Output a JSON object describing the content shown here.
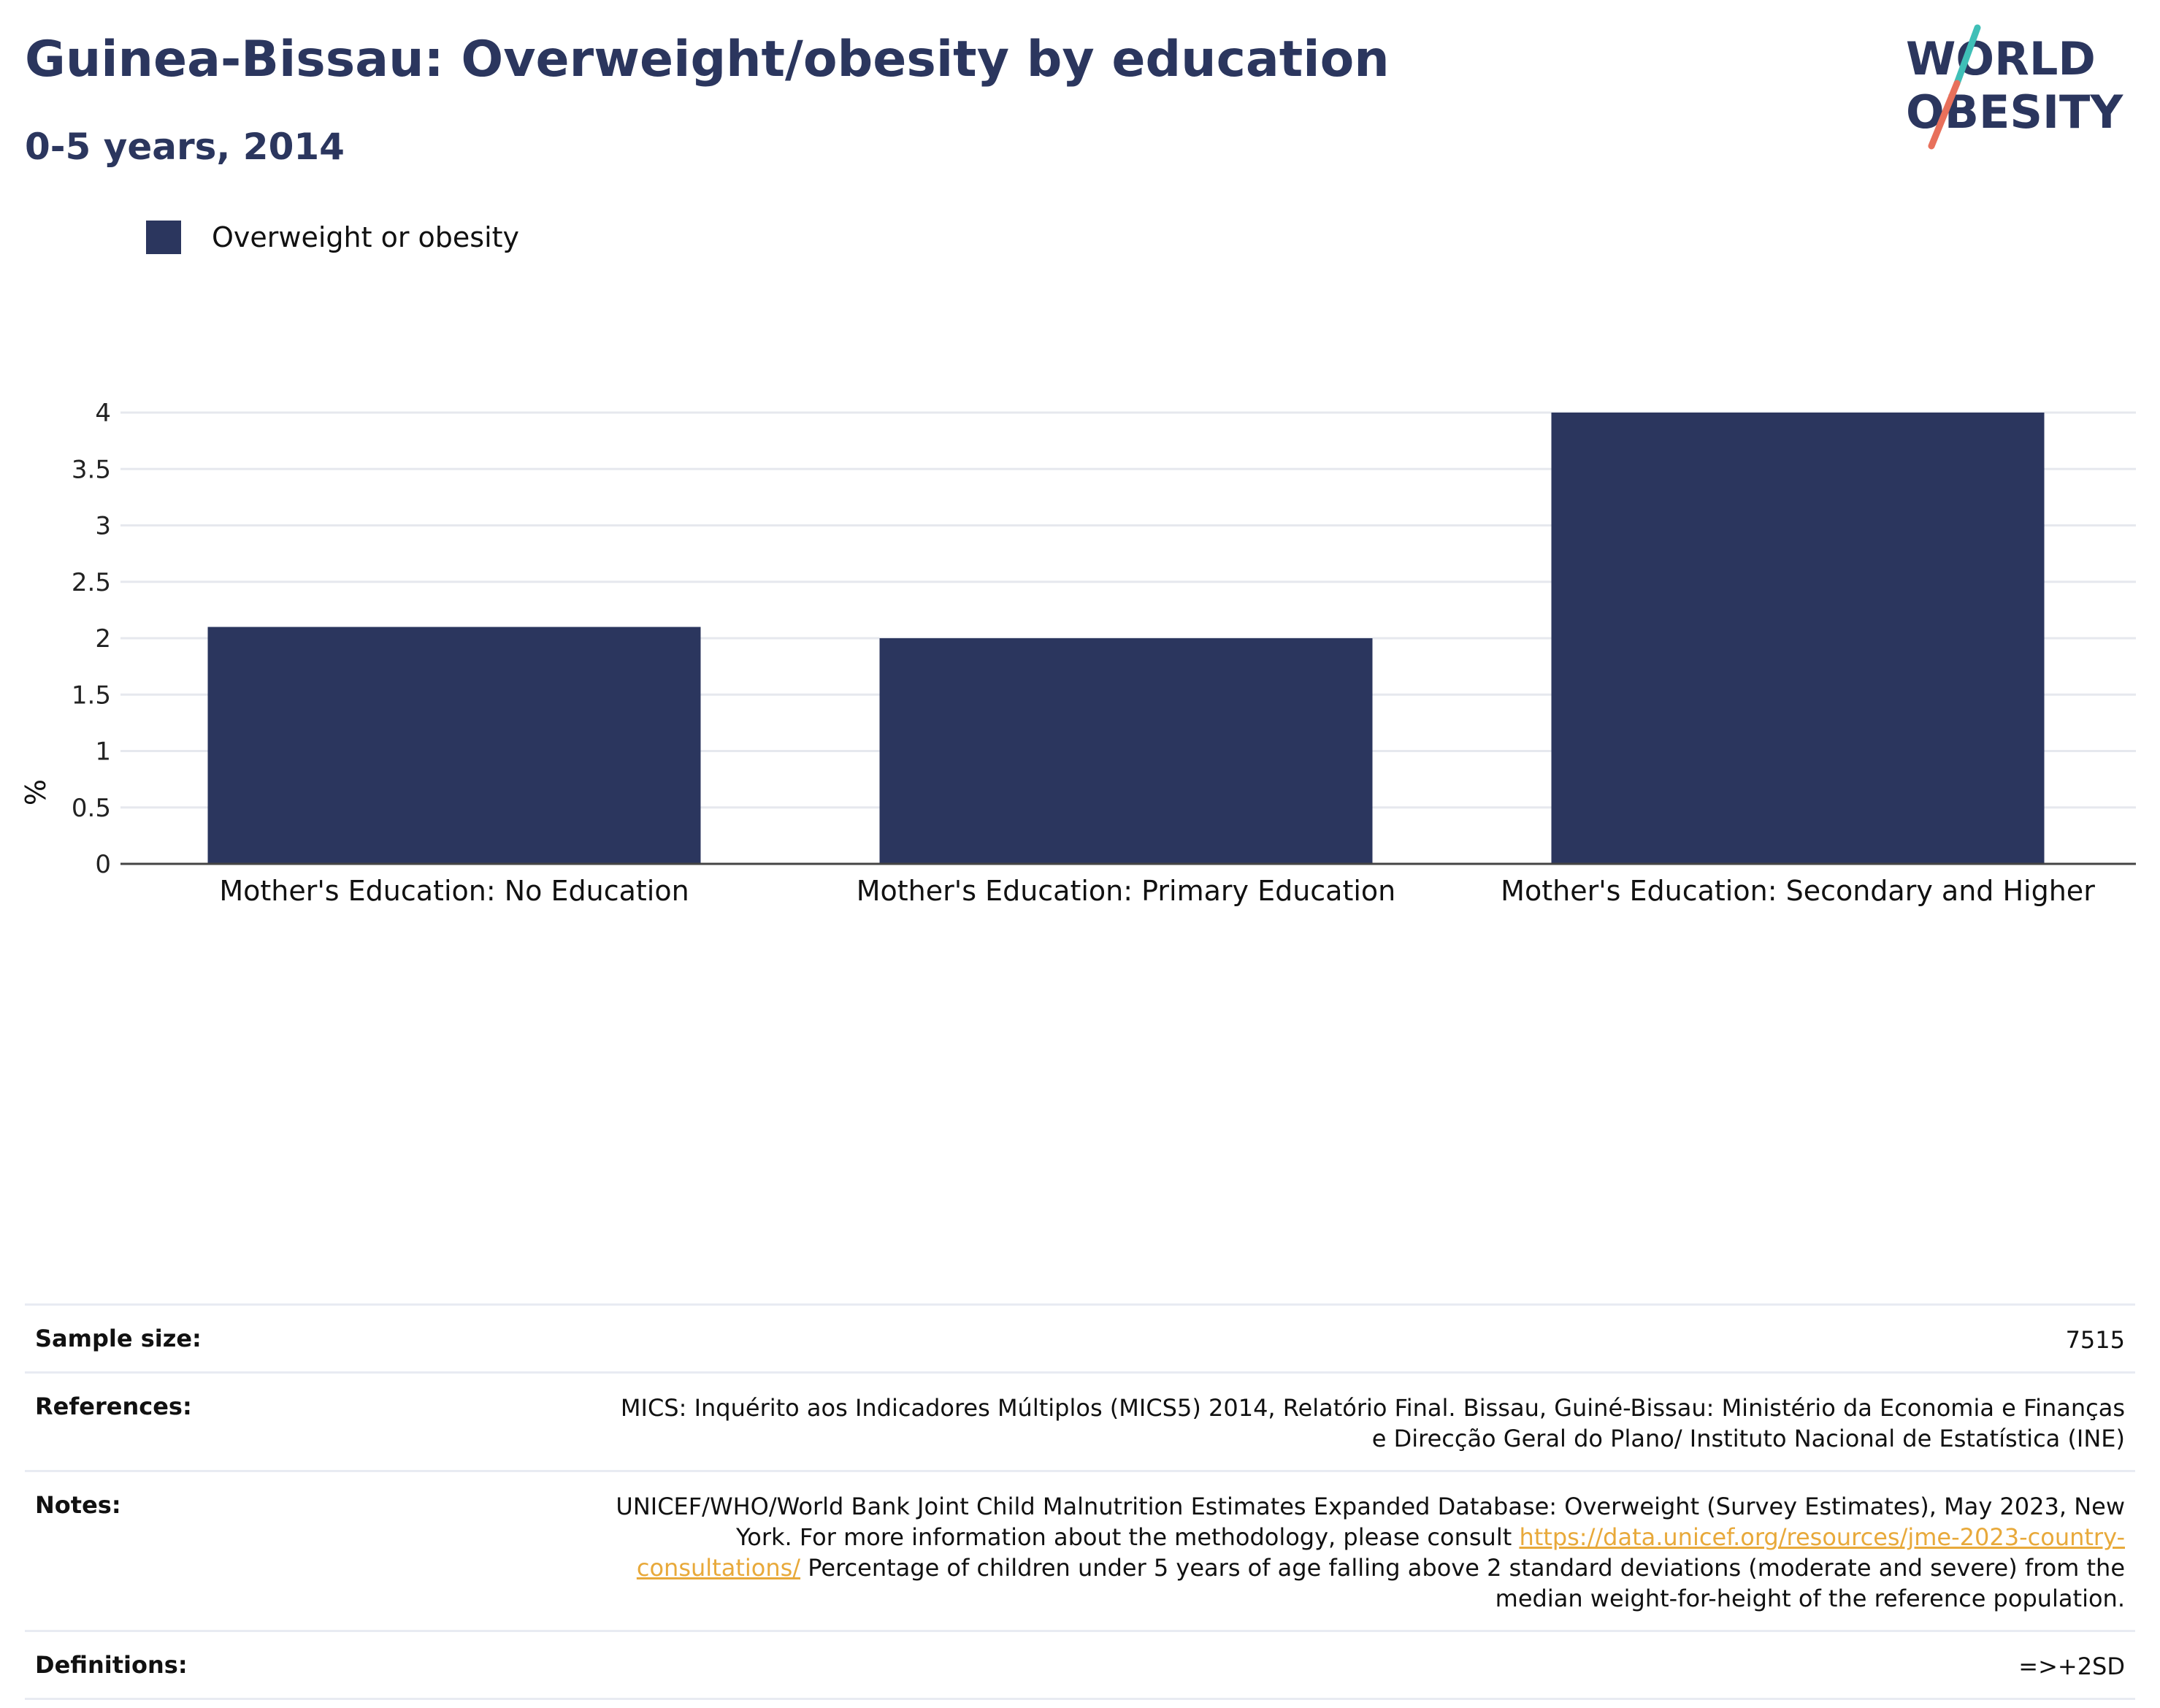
{
  "header": {
    "title": "Guinea-Bissau: Overweight/obesity by education",
    "subtitle": "0-5 years, 2014"
  },
  "logo": {
    "line1": "WORLD",
    "line2": "OBESITY",
    "colors": {
      "text": "#2b365e",
      "slash_top": "#3fbfb7",
      "slash_bottom": "#e8705b"
    }
  },
  "legend": {
    "label": "Overweight or obesity",
    "color": "#2b365e"
  },
  "chart_data": {
    "type": "bar",
    "categories": [
      "Mother's Education: No Education",
      "Mother's Education: Primary Education",
      "Mother's Education: Secondary and Higher"
    ],
    "series": [
      {
        "name": "Overweight or obesity",
        "values": [
          2.1,
          2.0,
          4.0
        ]
      }
    ],
    "ylabel": "%",
    "yticks": [
      "0",
      "0.5",
      "1",
      "1.5",
      "2",
      "2.5",
      "3",
      "3.5",
      "4"
    ],
    "ylim": [
      0,
      4.2
    ],
    "grid": true,
    "legend_position": "top-left",
    "bar_color": "#2b365e"
  },
  "info": {
    "sample_size_label": "Sample size:",
    "sample_size_value": "7515",
    "references_label": "References:",
    "references_value": "MICS: Inquérito aos Indicadores Múltiplos (MICS5) 2014, Relatório Final. Bissau, Guiné-Bissau: Ministério da Economia e Finanças e Direcção Geral do Plano/ Instituto Nacional de Estatística (INE)",
    "notes_label": "Notes:",
    "notes_text_1": "UNICEF/WHO/World Bank Joint Child Malnutrition Estimates Expanded Database: Overweight (Survey Estimates), May 2023, New York. For more information about the methodology, please consult ",
    "notes_link": "https://data.unicef.org/resources/jme-2023-country-consultations/",
    "notes_text_2": " Percentage of children under 5 years of age falling above 2 standard deviations (moderate and severe) from the median weight-for-height of the reference population.",
    "definitions_label": "Definitions:",
    "definitions_value": "=>+2SD"
  }
}
